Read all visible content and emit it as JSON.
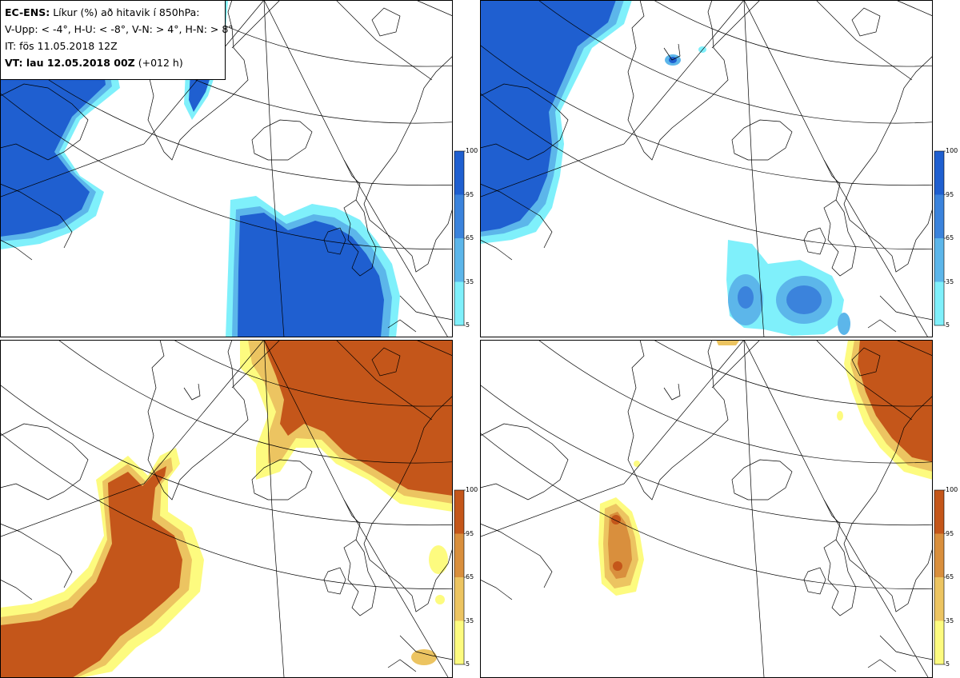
{
  "header": {
    "model": "EC-ENS:",
    "title": "Líkur (%) að hitavik í 850hPa:",
    "classes": "V-Upp: < -4°, H-U: < -8°, V-N: > 4°, H-N: > 8°",
    "init_time": "IT: fös 11.05.2018 12Z",
    "valid_prefix": "VT: lau 12.05.2018 00Z",
    "valid_suffix": "(+012 h)"
  },
  "colorbars": {
    "cold": {
      "ticks": [
        "100",
        "95",
        "65",
        "35",
        "5"
      ],
      "colors": [
        "#1f5fd0",
        "#3b83dc",
        "#5cb6ea",
        "#7ff0fb"
      ]
    },
    "warm": {
      "ticks": [
        "100",
        "95",
        "65",
        "35",
        "5"
      ],
      "colors": [
        "#c4561a",
        "#d98f3d",
        "#ecc461",
        "#fdfb7f"
      ]
    }
  },
  "colors": {
    "cold_outer": "#7ff0fb",
    "cold_mid": "#5cb6ea",
    "cold_inner": "#3b83dc",
    "cold_core": "#1f5fd0",
    "warm_outer": "#fdfb7f",
    "warm_mid": "#ecc461",
    "warm_inner": "#d98f3d",
    "warm_core": "#c4561a"
  }
}
